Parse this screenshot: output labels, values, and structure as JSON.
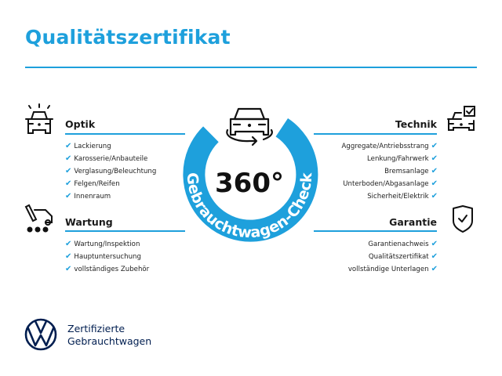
{
  "title": "Qualitätszertifikat",
  "center": {
    "degrees": "360°",
    "ring_text": "Gebrauchtwagen-Check"
  },
  "sections": {
    "optik": {
      "heading": "Optik",
      "icon": "car-lights-icon",
      "items": [
        "Lackierung",
        "Karosserie/Anbauteile",
        "Verglasung/Beleuchtung",
        "Felgen/Reifen",
        "Innenraum"
      ]
    },
    "wartung": {
      "heading": "Wartung",
      "icon": "service-tools-icon",
      "items": [
        "Wartung/Inspektion",
        "Hauptuntersuchung",
        "vollständiges Zubehör"
      ]
    },
    "technik": {
      "heading": "Technik",
      "icon": "car-checkbox-icon",
      "items": [
        "Aggregate/Antriebsstrang",
        "Lenkung/Fahrwerk",
        "Bremsanlage",
        "Unterboden/Abgasanlage",
        "Sicherheit/Elektrik"
      ]
    },
    "garantie": {
      "heading": "Garantie",
      "icon": "shield-check-icon",
      "items": [
        "Garantienachweis",
        "Qualitätszertifikat",
        "vollständige Unterlagen"
      ]
    }
  },
  "check_glyph": "✔",
  "brand": {
    "line1": "Zertifizierte",
    "line2": "Gebrauchtwagen",
    "logo": "vw-logo"
  },
  "colors": {
    "accent": "#1ea0dc",
    "brand_navy": "#001e50"
  }
}
